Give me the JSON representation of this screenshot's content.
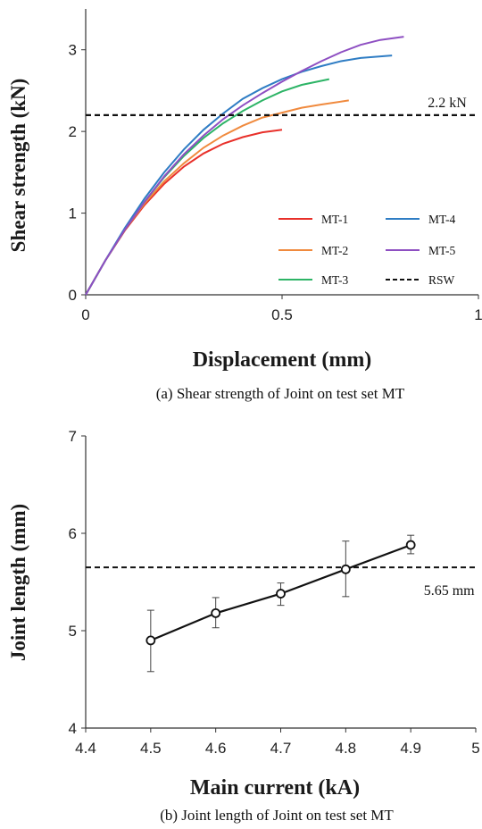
{
  "chart_data": [
    {
      "type": "line",
      "xlabel": "Displacement (mm)",
      "ylabel": "Shear strength (kN)",
      "caption": "(a) Shear strength of Joint on test set MT",
      "xlim": [
        0,
        1
      ],
      "ylim": [
        0,
        3.5
      ],
      "xticks": [
        "0",
        "0.5",
        "1"
      ],
      "xtick_values": [
        0,
        0.5,
        1
      ],
      "yticks": [
        "0",
        "1",
        "2",
        "3"
      ],
      "ytick_values": [
        0,
        1,
        2,
        3
      ],
      "grid": false,
      "legend_position": "bottom-right",
      "series": [
        {
          "name": "MT-1",
          "color": "#e8302a",
          "dashed": false,
          "x": [
            0,
            0.05,
            0.1,
            0.15,
            0.2,
            0.25,
            0.3,
            0.35,
            0.4,
            0.45,
            0.5
          ],
          "y": [
            0,
            0.42,
            0.79,
            1.1,
            1.36,
            1.57,
            1.73,
            1.85,
            1.93,
            1.99,
            2.02
          ]
        },
        {
          "name": "MT-2",
          "color": "#f08a3e",
          "dashed": false,
          "x": [
            0,
            0.05,
            0.1,
            0.15,
            0.2,
            0.25,
            0.3,
            0.35,
            0.4,
            0.45,
            0.5,
            0.55,
            0.6,
            0.67
          ],
          "y": [
            0,
            0.42,
            0.8,
            1.12,
            1.39,
            1.61,
            1.8,
            1.95,
            2.07,
            2.17,
            2.23,
            2.29,
            2.33,
            2.38
          ]
        },
        {
          "name": "MT-3",
          "color": "#2db466",
          "dashed": false,
          "x": [
            0,
            0.05,
            0.1,
            0.15,
            0.2,
            0.25,
            0.3,
            0.35,
            0.4,
            0.45,
            0.5,
            0.55,
            0.62
          ],
          "y": [
            0,
            0.42,
            0.8,
            1.14,
            1.44,
            1.7,
            1.92,
            2.1,
            2.25,
            2.38,
            2.49,
            2.57,
            2.64
          ]
        },
        {
          "name": "MT-4",
          "color": "#2f7dc4",
          "dashed": false,
          "x": [
            0,
            0.05,
            0.1,
            0.15,
            0.2,
            0.25,
            0.3,
            0.35,
            0.4,
            0.45,
            0.5,
            0.55,
            0.6,
            0.65,
            0.7,
            0.78
          ],
          "y": [
            0,
            0.42,
            0.82,
            1.18,
            1.5,
            1.78,
            2.02,
            2.22,
            2.4,
            2.53,
            2.64,
            2.73,
            2.8,
            2.86,
            2.9,
            2.93
          ]
        },
        {
          "name": "MT-5",
          "color": "#8e4fc2",
          "dashed": false,
          "x": [
            0,
            0.05,
            0.1,
            0.15,
            0.2,
            0.25,
            0.3,
            0.35,
            0.4,
            0.45,
            0.5,
            0.55,
            0.6,
            0.65,
            0.7,
            0.75,
            0.81
          ],
          "y": [
            0,
            0.42,
            0.8,
            1.14,
            1.45,
            1.72,
            1.95,
            2.15,
            2.32,
            2.47,
            2.61,
            2.74,
            2.86,
            2.97,
            3.06,
            3.12,
            3.16
          ]
        },
        {
          "name": "RSW",
          "color": "#111111",
          "dashed": true,
          "x": [
            0,
            1
          ],
          "y": [
            2.2,
            2.2
          ]
        }
      ],
      "annotations": [
        {
          "text": "2.2 kN",
          "x": 0.97,
          "y": 2.2
        }
      ]
    },
    {
      "type": "line",
      "xlabel": "Main current (kA)",
      "ylabel": "Joint length (mm)",
      "caption": "(b) Joint length of Joint on test set MT",
      "xlim": [
        4.4,
        5
      ],
      "ylim": [
        4,
        7
      ],
      "xticks": [
        "4.4",
        "4.5",
        "4.6",
        "4.7",
        "4.8",
        "4.9",
        "5"
      ],
      "xtick_values": [
        4.4,
        4.5,
        4.6,
        4.7,
        4.8,
        4.9,
        5
      ],
      "yticks": [
        "4",
        "5",
        "6",
        "7"
      ],
      "ytick_values": [
        4,
        5,
        6,
        7
      ],
      "grid": false,
      "series": [
        {
          "color": "#111111",
          "marker": "circle",
          "x": [
            4.5,
            4.6,
            4.7,
            4.8,
            4.9
          ],
          "y": [
            4.9,
            5.18,
            5.38,
            5.63,
            5.88
          ],
          "err_low": [
            4.58,
            5.03,
            5.26,
            5.35,
            5.79
          ],
          "err_high": [
            5.21,
            5.34,
            5.49,
            5.92,
            5.98
          ]
        }
      ],
      "reference_line": {
        "y": 5.65,
        "dashed": true,
        "color": "#111111"
      },
      "annotations": [
        {
          "text": "5.65 mm",
          "x": 4.92,
          "y": 5.65
        }
      ]
    }
  ]
}
